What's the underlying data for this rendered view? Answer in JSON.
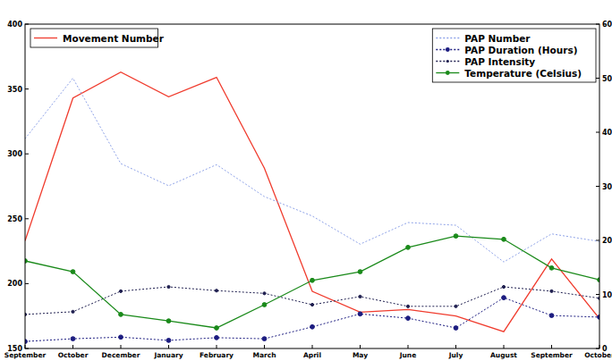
{
  "chart_data": {
    "type": "line",
    "categories": [
      "September",
      "October",
      "December",
      "January",
      "February",
      "March",
      "April",
      "May",
      "June",
      "July",
      "August",
      "September",
      "October"
    ],
    "ylim": [
      150,
      400
    ],
    "yticks": [
      150,
      200,
      250,
      300,
      350,
      400
    ],
    "y2lim": [
      0,
      60
    ],
    "y2ticks": [
      0,
      10,
      20,
      30,
      40,
      50,
      60
    ],
    "legend": "upper right",
    "grid": false,
    "series": [
      {
        "name": "Movement Number",
        "color": "#f03c2e",
        "line_style": "solid",
        "marker": "none",
        "values": [
          233,
          343,
          363,
          344,
          359,
          289,
          194,
          178,
          180,
          175,
          163,
          219,
          173
        ]
      },
      {
        "name": "PAP Number",
        "color": "#8fa3e8",
        "line_style": "dotted",
        "marker": "none",
        "axis": "y2",
        "values": [
          38.8,
          50,
          34.2,
          30.1,
          34,
          28.1,
          24.5,
          19.3,
          23.3,
          22.8,
          16,
          21.2,
          19.8
        ]
      },
      {
        "name": "PAP Duration (Hours)",
        "color": "#1c1c80",
        "line_style": "dotted",
        "marker": "circle",
        "axis": "y2",
        "values": [
          1.3,
          1.8,
          2.1,
          1.5,
          2,
          1.8,
          4,
          6.4,
          5.6,
          3.8,
          9.4,
          6.1,
          5.8
        ]
      },
      {
        "name": "PAP Intensity",
        "color": "#202050",
        "line_style": "dotted",
        "marker": "point",
        "axis": "y2",
        "values": [
          6.3,
          6.8,
          10.6,
          11.4,
          10.7,
          10.2,
          8.1,
          9.6,
          7.8,
          7.8,
          11.4,
          10.6,
          9.3
        ]
      },
      {
        "name": "Temperature (Celsius)",
        "color": "#1a8a1a",
        "line_style": "solid",
        "marker": "circle",
        "axis": "y2",
        "values": [
          16.2,
          14.2,
          6.3,
          5.1,
          3.8,
          8.1,
          12.6,
          14.2,
          18.7,
          20.8,
          20.2,
          14.9,
          12.7
        ]
      }
    ]
  }
}
